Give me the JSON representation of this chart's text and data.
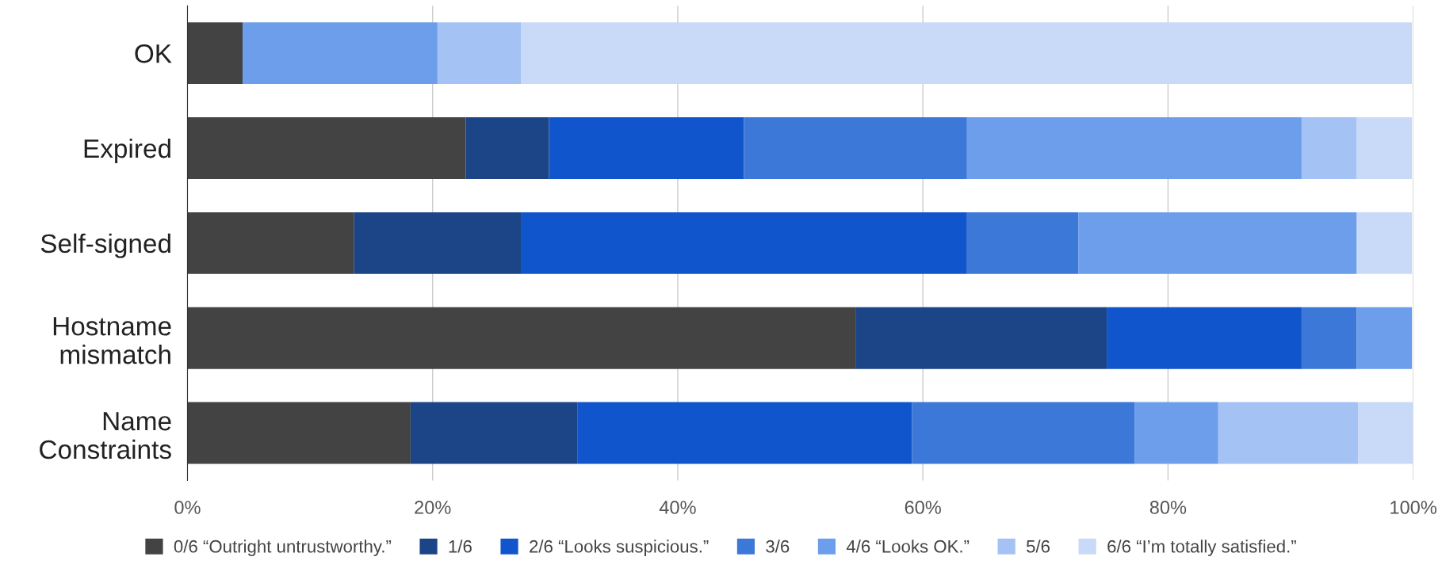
{
  "chart_data": {
    "type": "bar",
    "orientation": "horizontal",
    "stacked": true,
    "categories": [
      "OK",
      "Expired",
      "Self-signed",
      "Hostname\nmismatch",
      "Name\nConstraints"
    ],
    "series": [
      {
        "name": "0/6 “Outright untrustworthy.”",
        "color": "#434343",
        "values": [
          4.5,
          22.7,
          13.6,
          54.5,
          18.2
        ]
      },
      {
        "name": "1/6",
        "color": "#1c4587",
        "values": [
          0,
          6.8,
          13.6,
          20.5,
          13.6
        ]
      },
      {
        "name": "2/6 “Looks suspicious.”",
        "color": "#1155cc",
        "values": [
          0,
          15.9,
          36.4,
          15.9,
          27.3
        ]
      },
      {
        "name": "3/6",
        "color": "#3c78d8",
        "values": [
          0,
          18.2,
          9.1,
          4.5,
          18.2
        ]
      },
      {
        "name": "4/6 “Looks OK.”",
        "color": "#6d9eeb",
        "values": [
          15.9,
          27.3,
          22.7,
          4.5,
          6.8
        ]
      },
      {
        "name": "5/6",
        "color": "#a4c2f4",
        "values": [
          6.8,
          4.5,
          0,
          0,
          11.4
        ]
      },
      {
        "name": "6/6 “I’m totally satisfied.”",
        "color": "#c9daf8",
        "values": [
          72.7,
          4.5,
          4.5,
          0,
          4.5
        ]
      }
    ],
    "xlim": [
      0,
      100
    ],
    "xticks": [
      {
        "value": 0,
        "label": "0%"
      },
      {
        "value": 20,
        "label": "20%"
      },
      {
        "value": 40,
        "label": "40%"
      },
      {
        "value": 60,
        "label": "60%"
      },
      {
        "value": 80,
        "label": "80%"
      },
      {
        "value": 100,
        "label": "100%"
      }
    ],
    "grid": "x",
    "legend": "bottom"
  }
}
